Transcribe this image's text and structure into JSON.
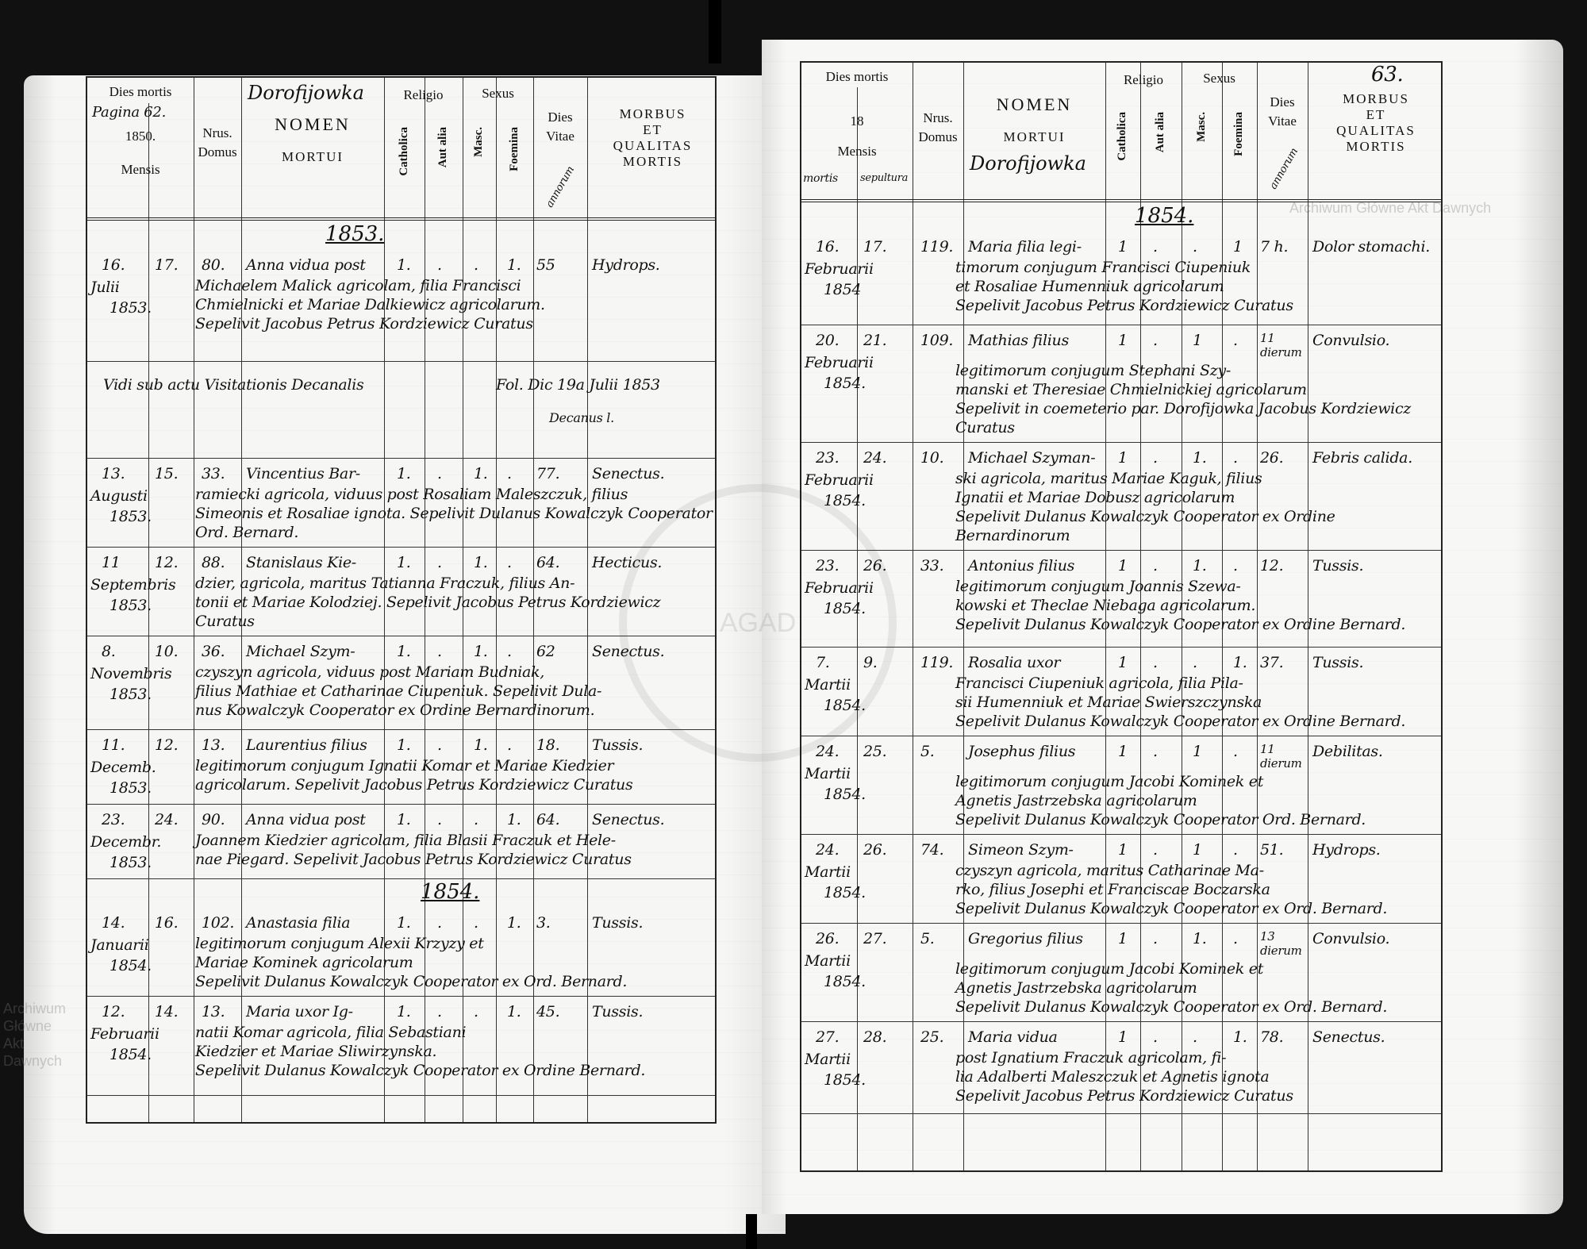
{
  "header": {
    "dies_mortis": "Dies mortis",
    "pagina_note": "Pagina 62.",
    "year_prefix_left": "1850.",
    "year_prefix_right": "18",
    "mensis": "Mensis",
    "mortis_note": "mortis",
    "sepultura_note": "sepultura",
    "nrus": "Nrus.",
    "domus": "Domus",
    "parish_name": "Dorofijowka",
    "nomen": "NOMEN",
    "mortui": "MORTUI",
    "religio": "Religio",
    "catholica": "Catholica",
    "aut_alia": "Aut alia",
    "sexus": "Sexus",
    "masc": "Masc.",
    "foemina": "Foemina",
    "dies": "Dies",
    "vitae": "Vitae",
    "annorum_note": "annorum",
    "morbus": "MORBUS",
    "et": "ET",
    "qualitas": "QUALITAS",
    "mortis": "MORTIS",
    "page_number_right": "63."
  },
  "watermark": {
    "text": "Archiwum Główne Akt Dawnych",
    "seal_text": "AGAD"
  },
  "left_page": {
    "year_labels": [
      "1853.",
      "1854."
    ],
    "rows": [
      {
        "day": "16.",
        "sep": "17.",
        "month": "Julii",
        "year": "1853.",
        "nr": "80.",
        "lines": [
          "Anna vidua post",
          "Michaelem Malick agricolam, filia Francisci",
          "Chmielnicki et Mariae Dalkiewicz agricolarum.",
          "Sepelivit Jacobus Petrus Kordziewicz Curatus"
        ],
        "cath": "1.",
        "alia": ".",
        "masc": ".",
        "foem": "1.",
        "vitae": "55",
        "morbus": "Hydrops."
      },
      {
        "note": true,
        "lines": [
          "Vidi sub actu Visitationis Decanalis",
          "Fol. Dic 19a Julii 1853",
          "Decanus l."
        ]
      },
      {
        "day": "13.",
        "sep": "15.",
        "month": "Augusti",
        "year": "1853.",
        "nr": "33.",
        "lines": [
          "Vincentius Bar-",
          "ramiecki agricola, viduus post Rosaliam Maleszczuk, filius",
          "Simeonis et Rosaliae ignota. Sepelivit Dulanus Kowalczyk Cooperator Ord. Bernard."
        ],
        "cath": "1.",
        "alia": ".",
        "masc": "1.",
        "foem": ".",
        "vitae": "77.",
        "morbus": "Senectus."
      },
      {
        "day": "11",
        "sep": "12.",
        "month": "Septembris",
        "year": "1853.",
        "nr": "88.",
        "lines": [
          "Stanislaus Kie-",
          "dzier, agricola, maritus Tatianna Fraczuk, filius An-",
          "tonii et Mariae Kolodziej. Sepelivit Jacobus Petrus Kordziewicz Curatus"
        ],
        "cath": "1.",
        "alia": ".",
        "masc": "1.",
        "foem": ".",
        "vitae": "64.",
        "morbus": "Hecticus."
      },
      {
        "day": "8.",
        "sep": "10.",
        "month": "Novembris",
        "year": "1853.",
        "nr": "36.",
        "lines": [
          "Michael Szym-",
          "czyszyn agricola, viduus post Mariam Budniak,",
          "filius Mathiae et Catharinae Ciupeniuk. Sepelivit Dula-",
          "nus Kowalczyk Cooperator ex Ordine Bernardinorum."
        ],
        "cath": "1.",
        "alia": ".",
        "masc": "1.",
        "foem": ".",
        "vitae": "62",
        "morbus": "Senectus."
      },
      {
        "day": "11.",
        "sep": "12.",
        "month": "Decemb.",
        "year": "1853.",
        "nr": "13.",
        "lines": [
          "Laurentius filius",
          "legitimorum conjugum Ignatii Komar et Mariae Kiedzier",
          "agricolarum. Sepelivit Jacobus Petrus Kordziewicz Curatus"
        ],
        "cath": "1.",
        "alia": ".",
        "masc": "1.",
        "foem": ".",
        "vitae": "18.",
        "morbus": "Tussis."
      },
      {
        "day": "23.",
        "sep": "24.",
        "month": "Decembr.",
        "year": "1853.",
        "nr": "90.",
        "lines": [
          "Anna vidua post",
          "Joannem Kiedzier agricolam, filia Blasii Fraczuk et Hele-",
          "nae Piegard. Sepelivit Jacobus Petrus Kordziewicz Curatus"
        ],
        "cath": "1.",
        "alia": ".",
        "masc": ".",
        "foem": "1.",
        "vitae": "64.",
        "morbus": "Senectus."
      },
      {
        "day": "14.",
        "sep": "16.",
        "month": "Januarii",
        "year": "1854.",
        "nr": "102.",
        "lines": [
          "Anastasia filia",
          "legitimorum conjugum Alexii Krzyzy et",
          "Mariae Kominek agricolarum",
          "Sepelivit Dulanus Kowalczyk Cooperator ex Ord. Bernard."
        ],
        "cath": "1.",
        "alia": ".",
        "masc": ".",
        "foem": "1.",
        "vitae": "3.",
        "morbus": "Tussis."
      },
      {
        "day": "12.",
        "sep": "14.",
        "month": "Februarii",
        "year": "1854.",
        "nr": "13.",
        "lines": [
          "Maria uxor Ig-",
          "natii Komar agricola, filia Sebastiani",
          "Kiedzier et Mariae Sliwirzynska.",
          "Sepelivit Dulanus Kowalczyk Cooperator ex Ordine Bernard."
        ],
        "cath": "1.",
        "alia": ".",
        "masc": ".",
        "foem": "1.",
        "vitae": "45.",
        "morbus": "Tussis."
      }
    ]
  },
  "right_page": {
    "year_labels": [
      "1854."
    ],
    "rows": [
      {
        "day": "16.",
        "sep": "17.",
        "month": "Februarii",
        "year": "1854",
        "nr": "119.",
        "lines": [
          "Maria filia legi-",
          "timorum conjugum Francisci Ciupeniuk",
          "et Rosaliae Humenniuk agricolarum",
          "Sepelivit Jacobus Petrus Kordziewicz Curatus"
        ],
        "cath": "1",
        "alia": ".",
        "masc": ".",
        "foem": "1",
        "vitae": "7 h.",
        "morbus": "Dolor stomachi."
      },
      {
        "day": "20.",
        "sep": "21.",
        "month": "Februarii",
        "year": "1854.",
        "nr": "109.",
        "lines": [
          "Mathias filius",
          "legitimorum conjugum Stephani Szy-",
          "manski et Theresiae Chmielnickiej agricolarum",
          "Sepelivit in coemeterio par. Dorofijowka Jacobus Kordziewicz Curatus"
        ],
        "cath": "1",
        "alia": ".",
        "masc": "1",
        "foem": ".",
        "vitae": "11 dierum",
        "morbus": "Convulsio."
      },
      {
        "day": "23.",
        "sep": "24.",
        "month": "Februarii",
        "year": "1854.",
        "nr": "10.",
        "lines": [
          "Michael Szyman-",
          "ski agricola, maritus Mariae Kaguk, filius",
          "Ignatii et Mariae Dobusz agricolarum",
          "Sepelivit Dulanus Kowalczyk Cooperator ex Ordine Bernardinorum"
        ],
        "cath": "1",
        "alia": ".",
        "masc": "1.",
        "foem": ".",
        "vitae": "26.",
        "morbus": "Febris calida."
      },
      {
        "day": "23.",
        "sep": "26.",
        "month": "Februarii",
        "year": "1854.",
        "nr": "33.",
        "lines": [
          "Antonius filius",
          "legitimorum conjugum Joannis Szewa-",
          "kowski et Theclae Niebaga agricolarum.",
          "Sepelivit Dulanus Kowalczyk Cooperator ex Ordine Bernard."
        ],
        "cath": "1",
        "alia": ".",
        "masc": "1.",
        "foem": ".",
        "vitae": "12.",
        "morbus": "Tussis."
      },
      {
        "day": "7.",
        "sep": "9.",
        "month": "Martii",
        "year": "1854.",
        "nr": "119.",
        "lines": [
          "Rosalia uxor",
          "Francisci Ciupeniuk agricola, filia Pila-",
          "sii Humenniuk et Mariae Swierszczynska",
          "Sepelivit Dulanus Kowalczyk Cooperator ex Ordine Bernard."
        ],
        "cath": "1",
        "alia": ".",
        "masc": ".",
        "foem": "1.",
        "vitae": "37.",
        "morbus": "Tussis."
      },
      {
        "day": "24.",
        "sep": "25.",
        "month": "Martii",
        "year": "1854.",
        "nr": "5.",
        "lines": [
          "Josephus filius",
          "legitimorum conjugum Jacobi Kominek et",
          "Agnetis Jastrzebska agricolarum",
          "Sepelivit Dulanus Kowalczyk Cooperator Ord. Bernard."
        ],
        "cath": "1",
        "alia": ".",
        "masc": "1",
        "foem": ".",
        "vitae": "11 dierum",
        "morbus": "Debilitas."
      },
      {
        "day": "24.",
        "sep": "26.",
        "month": "Martii",
        "year": "1854.",
        "nr": "74.",
        "lines": [
          "Simeon Szym-",
          "czyszyn agricola, maritus Catharinae Ma-",
          "rko, filius Josephi et Franciscae Boczarska",
          "Sepelivit Dulanus Kowalczyk Cooperator ex Ord. Bernard."
        ],
        "cath": "1",
        "alia": ".",
        "masc": "1",
        "foem": ".",
        "vitae": "51.",
        "morbus": "Hydrops."
      },
      {
        "day": "26.",
        "sep": "27.",
        "month": "Martii",
        "year": "1854.",
        "nr": "5.",
        "lines": [
          "Gregorius filius",
          "legitimorum conjugum Jacobi Kominek et",
          "Agnetis Jastrzebska agricolarum",
          "Sepelivit Dulanus Kowalczyk Cooperator ex Ord. Bernard."
        ],
        "cath": "1",
        "alia": ".",
        "masc": "1.",
        "foem": ".",
        "vitae": "13 dierum",
        "morbus": "Convulsio."
      },
      {
        "day": "27.",
        "sep": "28.",
        "month": "Martii",
        "year": "1854.",
        "nr": "25.",
        "lines": [
          "Maria vidua",
          "post Ignatium Fraczuk agricolam, fi-",
          "lia Adalberti Maleszczuk et Agnetis ignota",
          "Sepelivit Jacobus Petrus Kordziewicz Curatus"
        ],
        "cath": "1",
        "alia": ".",
        "masc": ".",
        "foem": "1.",
        "vitae": "78.",
        "morbus": "Senectus."
      }
    ]
  }
}
